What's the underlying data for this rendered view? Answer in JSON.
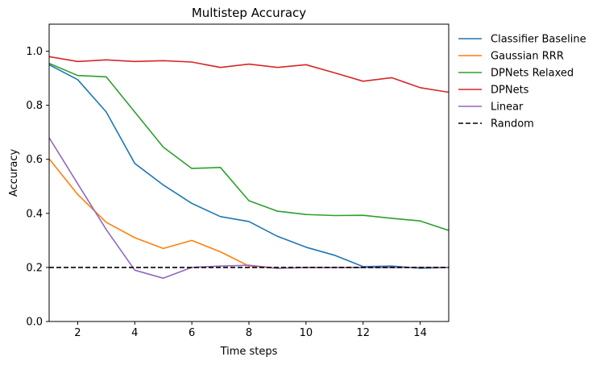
{
  "chart_data": {
    "type": "line",
    "title": "Multistep Accuracy",
    "xlabel": "Time steps",
    "ylabel": "Accuracy",
    "xlim": [
      1,
      15
    ],
    "ylim": [
      0,
      1.1
    ],
    "xticks": [
      2,
      4,
      6,
      8,
      10,
      12,
      14
    ],
    "yticks": [
      0.0,
      0.2,
      0.4,
      0.6,
      0.8,
      1.0
    ],
    "xtick_labels": [
      "2",
      "4",
      "6",
      "8",
      "10",
      "12",
      "14"
    ],
    "ytick_labels": [
      "0.0",
      "0.2",
      "0.4",
      "0.6",
      "0.8",
      "1.0"
    ],
    "grid": false,
    "legend_position": "outside-right",
    "x": [
      1,
      2,
      3,
      4,
      5,
      6,
      7,
      8,
      9,
      10,
      11,
      12,
      13,
      14,
      15
    ],
    "series": [
      {
        "name": "Classifier Baseline",
        "color": "#1f77b4",
        "dash": "solid",
        "values": [
          0.95,
          0.895,
          0.775,
          0.585,
          0.505,
          0.437,
          0.388,
          0.37,
          0.315,
          0.275,
          0.245,
          0.203,
          0.205,
          0.197,
          0.2
        ]
      },
      {
        "name": "Gaussian RRR",
        "color": "#ff7f0e",
        "dash": "solid",
        "values": [
          0.602,
          0.47,
          0.367,
          0.31,
          0.27,
          0.3,
          0.258,
          0.205,
          0.197,
          0.2,
          0.2,
          0.2,
          0.2,
          0.2,
          0.2
        ]
      },
      {
        "name": "DPNets Relaxed",
        "color": "#2ca02c",
        "dash": "solid",
        "values": [
          0.955,
          0.91,
          0.905,
          0.775,
          0.645,
          0.566,
          0.57,
          0.447,
          0.408,
          0.396,
          0.392,
          0.393,
          0.382,
          0.372,
          0.337
        ]
      },
      {
        "name": "DPNets",
        "color": "#d62728",
        "dash": "solid",
        "values": [
          0.98,
          0.962,
          0.968,
          0.962,
          0.965,
          0.96,
          0.94,
          0.952,
          0.94,
          0.95,
          0.92,
          0.889,
          0.902,
          0.865,
          0.848
        ]
      },
      {
        "name": "Linear",
        "color": "#9467bd",
        "dash": "solid",
        "values": [
          0.68,
          0.51,
          0.34,
          0.19,
          0.16,
          0.2,
          0.205,
          0.208,
          0.197,
          0.2,
          0.2,
          0.2,
          0.2,
          0.2,
          0.2
        ]
      },
      {
        "name": "Random",
        "color": "#000000",
        "dash": "dashed",
        "values": [
          0.2,
          0.2,
          0.2,
          0.2,
          0.2,
          0.2,
          0.2,
          0.2,
          0.2,
          0.2,
          0.2,
          0.2,
          0.2,
          0.2,
          0.2
        ]
      }
    ]
  }
}
